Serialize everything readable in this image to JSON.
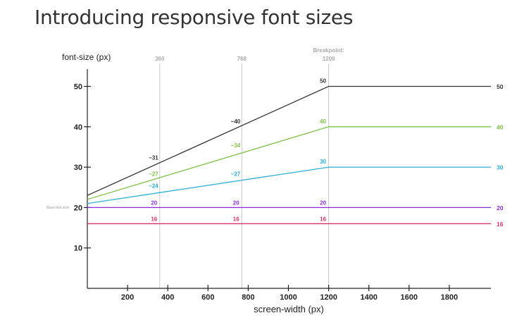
{
  "page": {
    "title": "Introducing responsive font sizes"
  },
  "chart_data": {
    "type": "line",
    "title": "Introducing responsive font sizes",
    "xlabel": "screen-width (px)",
    "ylabel": "font-size (px)",
    "xlim": [
      0,
      2000
    ],
    "ylim": [
      0,
      55
    ],
    "x_ticks": [
      200,
      400,
      600,
      800,
      1000,
      1200,
      1400,
      1600,
      1800
    ],
    "y_ticks": [
      10,
      20,
      30,
      40,
      50
    ],
    "grid": false,
    "legend": "none",
    "base_font_size_label": "Base font size:",
    "reference_lines": [
      {
        "x": 360,
        "label": "360",
        "caption": ""
      },
      {
        "x": 768,
        "label": "768",
        "caption": ""
      },
      {
        "x": 1200,
        "label": "1200",
        "caption": "Breakpoint:"
      }
    ],
    "series": [
      {
        "color": "#333333",
        "x": [
          0,
          1200,
          2000
        ],
        "y": [
          23,
          50,
          50
        ],
        "labels": [
          {
            "x": 360,
            "y": 31,
            "text": "~31"
          },
          {
            "x": 768,
            "y": 40,
            "text": "~40"
          },
          {
            "x": 1200,
            "y": 50,
            "text": "50"
          }
        ],
        "end_label": "50"
      },
      {
        "color": "#7dbf45",
        "x": [
          0,
          1200,
          2000
        ],
        "y": [
          22,
          40,
          40
        ],
        "labels": [
          {
            "x": 360,
            "y": 27,
            "text": "~27"
          },
          {
            "x": 768,
            "y": 34,
            "text": "~34"
          },
          {
            "x": 1200,
            "y": 40,
            "text": "40"
          }
        ],
        "end_label": "40"
      },
      {
        "color": "#2aaed6",
        "x": [
          0,
          1200,
          2000
        ],
        "y": [
          21,
          30,
          30
        ],
        "labels": [
          {
            "x": 360,
            "y": 24,
            "text": "~24"
          },
          {
            "x": 768,
            "y": 27,
            "text": "~27"
          },
          {
            "x": 1200,
            "y": 30,
            "text": "30"
          }
        ],
        "end_label": "30"
      },
      {
        "color": "#8a2be2",
        "x": [
          0,
          2000
        ],
        "y": [
          20,
          20
        ],
        "labels": [
          {
            "x": 360,
            "y": 20,
            "text": "20"
          },
          {
            "x": 768,
            "y": 20,
            "text": "20"
          },
          {
            "x": 1200,
            "y": 20,
            "text": "20"
          }
        ],
        "end_label": "20"
      },
      {
        "color": "#e0306a",
        "x": [
          0,
          2000
        ],
        "y": [
          16,
          16
        ],
        "labels": [
          {
            "x": 360,
            "y": 16,
            "text": "16"
          },
          {
            "x": 768,
            "y": 16,
            "text": "16"
          },
          {
            "x": 1200,
            "y": 16,
            "text": "16"
          }
        ],
        "end_label": "16"
      }
    ]
  }
}
